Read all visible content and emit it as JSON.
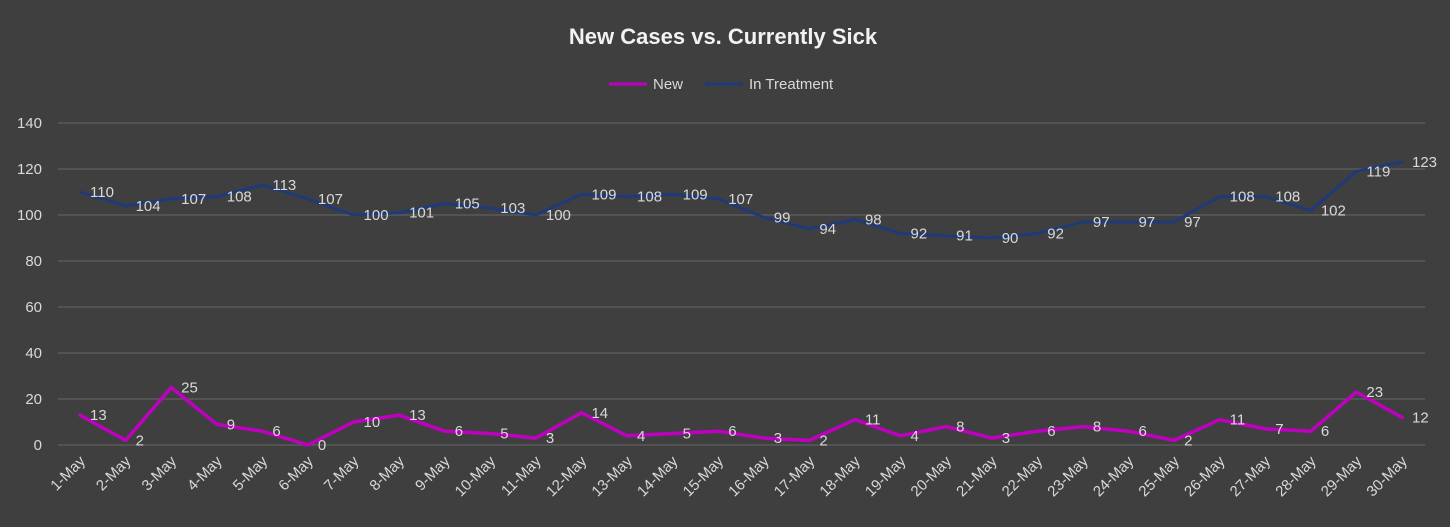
{
  "chart_data": {
    "type": "line",
    "title": "New Cases vs. Currently Sick",
    "xlabel": "",
    "ylabel": "",
    "categories": [
      "1-May",
      "2-May",
      "3-May",
      "4-May",
      "5-May",
      "6-May",
      "7-May",
      "8-May",
      "9-May",
      "10-May",
      "11-May",
      "12-May",
      "13-May",
      "14-May",
      "15-May",
      "16-May",
      "17-May",
      "18-May",
      "19-May",
      "20-May",
      "21-May",
      "22-May",
      "23-May",
      "24-May",
      "25-May",
      "26-May",
      "27-May",
      "28-May",
      "29-May",
      "30-May"
    ],
    "yticks": [
      0,
      20,
      40,
      60,
      80,
      100,
      120,
      140
    ],
    "ylim": [
      0,
      140
    ],
    "grid": true,
    "legend_position": "top",
    "series": [
      {
        "name": "New",
        "color": "#c000c0",
        "values": [
          13,
          2,
          25,
          9,
          6,
          0,
          10,
          13,
          6,
          5,
          3,
          14,
          4,
          5,
          6,
          3,
          2,
          11,
          4,
          8,
          3,
          6,
          8,
          6,
          2,
          11,
          7,
          6,
          23,
          12
        ]
      },
      {
        "name": "In Treatment",
        "color": "#1f3a7a",
        "values": [
          110,
          104,
          107,
          108,
          113,
          107,
          100,
          101,
          105,
          103,
          100,
          109,
          108,
          109,
          107,
          99,
          94,
          98,
          92,
          91,
          90,
          92,
          97,
          97,
          97,
          108,
          108,
          102,
          119,
          123
        ]
      }
    ]
  }
}
